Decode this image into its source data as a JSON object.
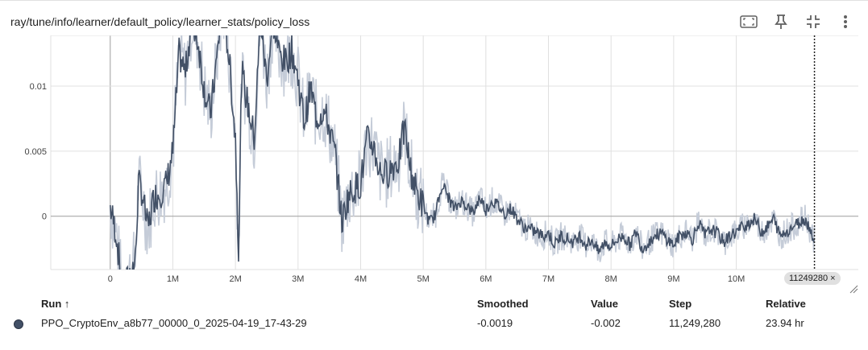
{
  "card": {
    "title": "ray/tune/info/learner/default_policy/learner_stats/policy_loss"
  },
  "toolbar": {
    "icons": [
      "fit-domain-icon",
      "pin-icon",
      "fullscreen-exit-icon",
      "more-vert-icon"
    ]
  },
  "colors": {
    "smoothed_line": "#425066",
    "raw_line": "#c5ccd8",
    "grid": "#e0e0e0",
    "zero_axis": "#9e9e9e",
    "cursor": "#212121"
  },
  "chart_data": {
    "type": "line",
    "title": "",
    "xlabel": "",
    "ylabel": "",
    "xlim": [
      -950000,
      11950000
    ],
    "ylim": [
      -0.0041,
      0.0139
    ],
    "x_ticks": [
      0,
      1000000,
      2000000,
      3000000,
      4000000,
      5000000,
      6000000,
      7000000,
      8000000,
      9000000,
      10000000
    ],
    "x_tick_labels": [
      "0",
      "1M",
      "2M",
      "3M",
      "4M",
      "5M",
      "6M",
      "7M",
      "8M",
      "9M",
      "10M"
    ],
    "y_ticks": [
      0,
      0.005,
      0.01
    ],
    "y_tick_labels": [
      "0",
      "0.005",
      "0.01"
    ],
    "grid": true,
    "cursor_step": 11249280,
    "cursor_label": "11249280",
    "series": [
      {
        "name": "PPO_CryptoEnv_a8b77_00000_0_2025-04-19_17-43-29",
        "x": [
          0,
          100000,
          200000,
          300000,
          400000,
          450000,
          500000,
          600000,
          700000,
          800000,
          900000,
          1000000,
          1100000,
          1200000,
          1300000,
          1400000,
          1500000,
          1600000,
          1700000,
          1800000,
          1900000,
          2000000,
          2050000,
          2100000,
          2200000,
          2300000,
          2400000,
          2500000,
          2600000,
          2700000,
          2800000,
          2900000,
          3000000,
          3100000,
          3200000,
          3300000,
          3400000,
          3500000,
          3600000,
          3700000,
          3800000,
          3900000,
          4000000,
          4100000,
          4200000,
          4300000,
          4400000,
          4500000,
          4600000,
          4700000,
          4800000,
          4900000,
          5000000,
          5100000,
          5200000,
          5300000,
          5400000,
          5500000,
          5600000,
          5700000,
          5800000,
          5900000,
          6000000,
          6100000,
          6200000,
          6300000,
          6400000,
          6500000,
          6600000,
          6700000,
          6800000,
          6900000,
          7000000,
          7100000,
          7200000,
          7300000,
          7400000,
          7500000,
          7600000,
          7700000,
          7800000,
          7900000,
          8000000,
          8100000,
          8200000,
          8300000,
          8400000,
          8500000,
          8600000,
          8700000,
          8800000,
          8900000,
          9000000,
          9100000,
          9200000,
          9300000,
          9400000,
          9500000,
          9600000,
          9700000,
          9800000,
          9900000,
          10000000,
          10100000,
          10200000,
          10300000,
          10400000,
          10500000,
          10600000,
          10700000,
          10800000,
          10900000,
          11000000,
          11100000,
          11200000,
          11249280
        ],
        "smoothed": [
          0.0007,
          -0.0015,
          -0.006,
          -0.0045,
          -0.0035,
          0.0025,
          0.002,
          -0.001,
          0.0015,
          0.0018,
          0.0025,
          0.005,
          0.0125,
          0.011,
          0.015,
          0.0135,
          0.0098,
          0.0078,
          0.012,
          0.0165,
          0.012,
          0.006,
          -0.0025,
          0.011,
          0.0085,
          0.006,
          0.015,
          0.0105,
          0.015,
          0.0125,
          0.0118,
          0.0128,
          0.0105,
          0.0072,
          0.0098,
          0.0075,
          0.0082,
          0.0068,
          0.0045,
          -0.0005,
          0.0015,
          0.0022,
          0.0025,
          0.0058,
          0.0055,
          0.0035,
          0.0032,
          0.0038,
          0.0042,
          0.0068,
          0.0035,
          0.0018,
          0.0008,
          -0.0005,
          0.0002,
          0.0025,
          0.0015,
          0.0005,
          0.0012,
          0.0008,
          0.0002,
          0.0015,
          0.0005,
          0.0012,
          0.0008,
          0.0002,
          0.0006,
          -0.0002,
          -0.0008,
          -0.001,
          -0.0012,
          -0.0015,
          -0.0013,
          -0.0022,
          -0.0015,
          -0.0017,
          -0.002,
          -0.0015,
          -0.0022,
          -0.0018,
          -0.0028,
          -0.002,
          -0.0023,
          -0.0018,
          -0.0015,
          -0.0022,
          -0.0012,
          -0.0025,
          -0.002,
          -0.0015,
          -0.0013,
          -0.0018,
          -0.0022,
          -0.0015,
          -0.0012,
          -0.0018,
          -0.0005,
          -0.0015,
          -0.001,
          -0.0013,
          -0.002,
          -0.0015,
          -0.0012,
          -0.0008,
          -0.0005,
          -0.0002,
          -0.0012,
          -0.0008,
          -0.0002,
          -0.0015,
          -0.0012,
          -0.0008,
          -0.0005,
          -0.0002,
          -0.0012,
          -0.0019
        ],
        "value_raw_last": -0.002
      }
    ]
  },
  "table": {
    "headers": {
      "run": "Run ↑",
      "smoothed": "Smoothed",
      "value": "Value",
      "step": "Step",
      "relative": "Relative"
    },
    "rows": [
      {
        "run": "PPO_CryptoEnv_a8b77_00000_0_2025-04-19_17-43-29",
        "smoothed": "-0.0019",
        "value": "-0.002",
        "step": "11,249,280",
        "relative": "23.94 hr",
        "color": "#425066"
      }
    ]
  }
}
